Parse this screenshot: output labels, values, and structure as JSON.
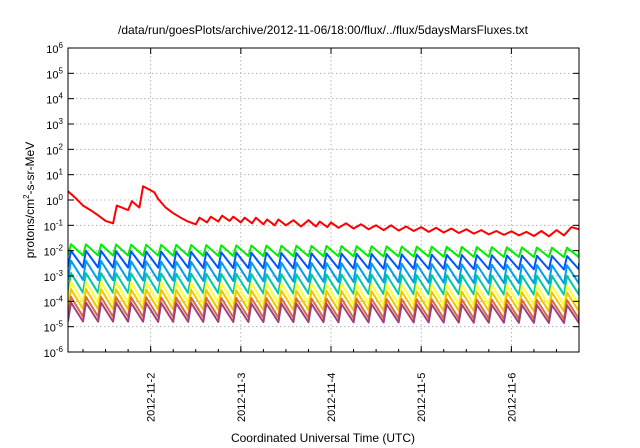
{
  "chart_data": {
    "type": "line",
    "title": "/data/run/goesPlots/archive/2012-11-06/18:00/flux/../flux/5daysMarsFluxes.txt",
    "xlabel": "Coordinated Universal Time (UTC)",
    "ylabel": {
      "base": "protons/cm",
      "sup": "2",
      "rest": "-s-sr-MeV"
    },
    "x_range": [
      "2012-11-01T02:00",
      "2012-11-06T18:00"
    ],
    "x_ticks": [
      "2012-11-2",
      "2012-11-3",
      "2012-11-4",
      "2012-11-5",
      "2012-11-6"
    ],
    "y_scale": "log",
    "ylim": [
      1e-06,
      1000000.0
    ],
    "y_ticks": [
      {
        "value": 1e-06,
        "base": "10",
        "exp": "-6"
      },
      {
        "value": 1e-05,
        "base": "10",
        "exp": "-5"
      },
      {
        "value": 0.0001,
        "base": "10",
        "exp": "-4"
      },
      {
        "value": 0.001,
        "base": "10",
        "exp": "-3"
      },
      {
        "value": 0.01,
        "base": "10",
        "exp": "-2"
      },
      {
        "value": 0.1,
        "base": "10",
        "exp": "-1"
      },
      {
        "value": 1,
        "base": "10",
        "exp": "0"
      },
      {
        "value": 10,
        "base": "10",
        "exp": "1"
      },
      {
        "value": 100,
        "base": "10",
        "exp": "2"
      },
      {
        "value": 1000,
        "base": "10",
        "exp": "3"
      },
      {
        "value": 10000,
        "base": "10",
        "exp": "4"
      },
      {
        "value": 100000,
        "base": "10",
        "exp": "5"
      },
      {
        "value": 1000000,
        "base": "10",
        "exp": "6"
      }
    ],
    "grid": true,
    "legend": "none",
    "series": [
      {
        "color": "#ff0000",
        "points": [
          [
            "2012-11-01T02:00",
            2.2
          ],
          [
            "2012-11-01T04:00",
            1.2
          ],
          [
            "2012-11-01T06:00",
            0.6
          ],
          [
            "2012-11-01T08:00",
            0.4
          ],
          [
            "2012-11-01T10:00",
            0.25
          ],
          [
            "2012-11-01T12:00",
            0.15
          ],
          [
            "2012-11-01T14:00",
            0.12
          ],
          [
            "2012-11-01T15:00",
            0.6
          ],
          [
            "2012-11-01T18:00",
            0.4
          ],
          [
            "2012-11-01T19:00",
            0.9
          ],
          [
            "2012-11-01T21:00",
            0.5
          ],
          [
            "2012-11-01T22:00",
            3.5
          ],
          [
            "2012-11-02T01:00",
            2.0
          ],
          [
            "2012-11-02T02:00",
            1.1
          ],
          [
            "2012-11-02T04:00",
            0.5
          ],
          [
            "2012-11-02T06:00",
            0.3
          ],
          [
            "2012-11-02T08:00",
            0.2
          ],
          [
            "2012-11-02T10:00",
            0.14
          ],
          [
            "2012-11-02T12:00",
            0.11
          ],
          [
            "2012-11-02T13:00",
            0.2
          ],
          [
            "2012-11-02T15:00",
            0.13
          ],
          [
            "2012-11-02T16:00",
            0.22
          ],
          [
            "2012-11-02T18:00",
            0.14
          ],
          [
            "2012-11-02T19:00",
            0.24
          ],
          [
            "2012-11-02T21:00",
            0.15
          ],
          [
            "2012-11-02T22:00",
            0.22
          ],
          [
            "2012-11-03T00:00",
            0.13
          ],
          [
            "2012-11-03T01:00",
            0.2
          ],
          [
            "2012-11-03T03:00",
            0.12
          ],
          [
            "2012-11-03T04:00",
            0.2
          ],
          [
            "2012-11-03T06:00",
            0.11
          ],
          [
            "2012-11-03T07:00",
            0.17
          ],
          [
            "2012-11-03T09:00",
            0.1
          ],
          [
            "2012-11-03T10:00",
            0.17
          ],
          [
            "2012-11-03T12:00",
            0.1
          ],
          [
            "2012-11-03T14:00",
            0.16
          ],
          [
            "2012-11-03T16:00",
            0.09
          ],
          [
            "2012-11-03T18:00",
            0.16
          ],
          [
            "2012-11-03T20:00",
            0.09
          ],
          [
            "2012-11-03T21:00",
            0.14
          ],
          [
            "2012-11-03T23:00",
            0.085
          ],
          [
            "2012-11-04T00:00",
            0.13
          ],
          [
            "2012-11-04T02:00",
            0.08
          ],
          [
            "2012-11-04T04:00",
            0.12
          ],
          [
            "2012-11-04T06:00",
            0.075
          ],
          [
            "2012-11-04T08:00",
            0.11
          ],
          [
            "2012-11-04T10:00",
            0.07
          ],
          [
            "2012-11-04T12:00",
            0.1
          ],
          [
            "2012-11-04T14:00",
            0.065
          ],
          [
            "2012-11-04T16:00",
            0.1
          ],
          [
            "2012-11-04T18:00",
            0.062
          ],
          [
            "2012-11-04T20:00",
            0.09
          ],
          [
            "2012-11-04T22:00",
            0.06
          ],
          [
            "2012-11-05T00:00",
            0.085
          ],
          [
            "2012-11-05T02:00",
            0.055
          ],
          [
            "2012-11-05T04:00",
            0.08
          ],
          [
            "2012-11-05T06:00",
            0.052
          ],
          [
            "2012-11-05T08:00",
            0.075
          ],
          [
            "2012-11-05T10:00",
            0.05
          ],
          [
            "2012-11-05T12:00",
            0.07
          ],
          [
            "2012-11-05T14:00",
            0.047
          ],
          [
            "2012-11-05T16:00",
            0.065
          ],
          [
            "2012-11-05T18:00",
            0.044
          ],
          [
            "2012-11-05T20:00",
            0.06
          ],
          [
            "2012-11-05T22:00",
            0.042
          ],
          [
            "2012-11-06T00:00",
            0.058
          ],
          [
            "2012-11-06T02:00",
            0.04
          ],
          [
            "2012-11-06T04:00",
            0.055
          ],
          [
            "2012-11-06T06:00",
            0.038
          ],
          [
            "2012-11-06T08:00",
            0.06
          ],
          [
            "2012-11-06T10:00",
            0.037
          ],
          [
            "2012-11-06T12:00",
            0.065
          ],
          [
            "2012-11-06T14:00",
            0.04
          ],
          [
            "2012-11-06T16:00",
            0.085
          ],
          [
            "2012-11-06T18:00",
            0.07
          ]
        ]
      },
      {
        "color": "#00ee00",
        "cycle": {
          "start": "2012-11-01T02:00",
          "period_hours": 4,
          "rise_hours": 0.8,
          "peak": 0.018,
          "trough": 0.0065,
          "end_peak": 0.013,
          "end_trough": 0.0055
        }
      },
      {
        "color": "#0055ff",
        "cycle": {
          "start": "2012-11-01T02:00",
          "period_hours": 4,
          "rise_hours": 0.8,
          "peak": 0.01,
          "trough": 0.0022,
          "end_peak": 0.006,
          "end_trough": 0.0018
        }
      },
      {
        "color": "#00a0e8",
        "cycle": {
          "start": "2012-11-01T02:00",
          "period_hours": 4,
          "rise_hours": 0.8,
          "peak": 0.004,
          "trough": 0.0007,
          "end_peak": 0.0026,
          "end_trough": 0.0005
        }
      },
      {
        "color": "#00c8a0",
        "cycle": {
          "start": "2012-11-01T02:00",
          "period_hours": 4,
          "rise_hours": 0.8,
          "peak": 0.0013,
          "trough": 0.00022,
          "end_peak": 0.001,
          "end_trough": 0.00018
        }
      },
      {
        "color": "#ffff33",
        "cycle": {
          "start": "2012-11-01T02:00",
          "period_hours": 4,
          "rise_hours": 0.8,
          "peak": 0.0006,
          "trough": 9e-05,
          "end_peak": 0.0004,
          "end_trough": 7e-05
        }
      },
      {
        "color": "#f4c400",
        "cycle": {
          "start": "2012-11-01T02:00",
          "period_hours": 4,
          "rise_hours": 0.8,
          "peak": 0.0003,
          "trough": 5e-05,
          "end_peak": 0.00022,
          "end_trough": 4e-05
        }
      },
      {
        "color": "#d86a40",
        "cycle": {
          "start": "2012-11-01T02:00",
          "period_hours": 4,
          "rise_hours": 0.8,
          "peak": 0.00015,
          "trough": 2.5e-05,
          "end_peak": 0.00011,
          "end_trough": 2e-05
        }
      },
      {
        "color": "#a04080",
        "cycle": {
          "start": "2012-11-01T02:00",
          "period_hours": 4,
          "rise_hours": 0.8,
          "peak": 9e-05,
          "trough": 1.6e-05,
          "end_peak": 7e-05,
          "end_trough": 1.4e-05
        }
      }
    ]
  }
}
